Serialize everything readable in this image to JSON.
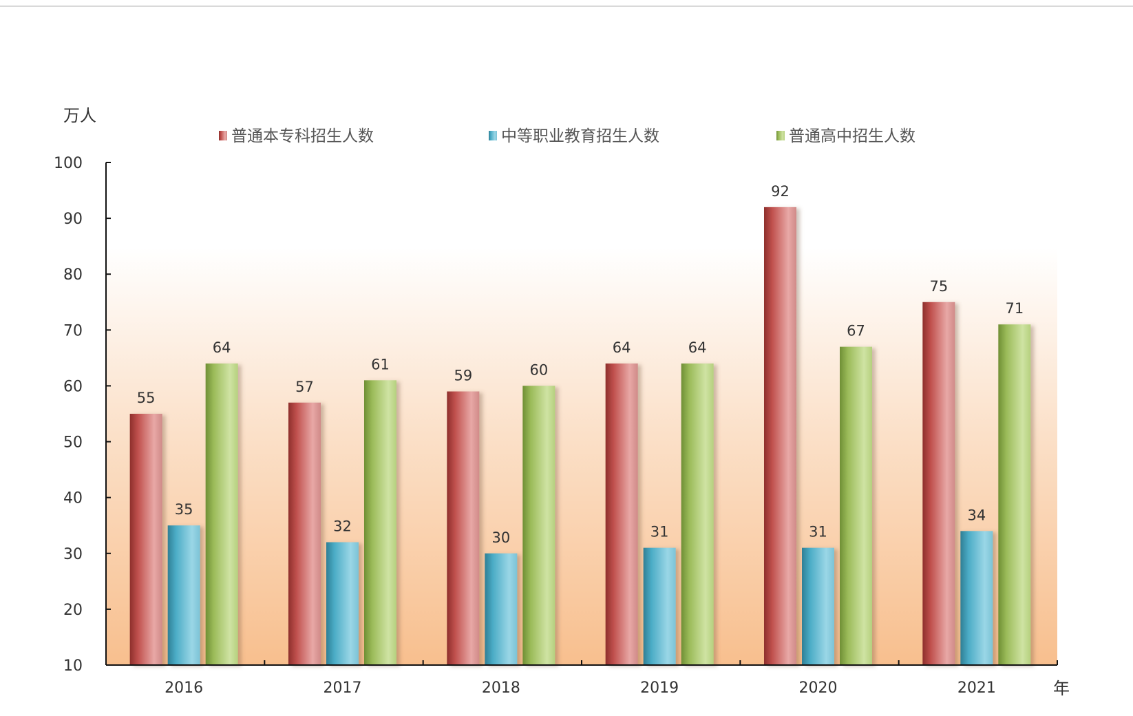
{
  "colors": {
    "series": [
      "#c0504d",
      "#4bacc6",
      "#9bbb59"
    ],
    "axis": "#111111",
    "background_gradient_top": "#ffffff",
    "background_gradient_bottom": "#f8bf8e"
  },
  "chart_data": {
    "type": "bar",
    "title": "",
    "xlabel": "年",
    "ylabel": "万人",
    "categories": [
      "2016",
      "2017",
      "2018",
      "2019",
      "2020",
      "2021"
    ],
    "series": [
      {
        "name": "普通本专科招生人数",
        "values": [
          55,
          57,
          59,
          64,
          92,
          75
        ]
      },
      {
        "name": "中等职业教育招生人数",
        "values": [
          35,
          32,
          30,
          31,
          31,
          34
        ]
      },
      {
        "name": "普通高中招生人数",
        "values": [
          64,
          61,
          60,
          64,
          67,
          71
        ]
      }
    ],
    "ylim": [
      10,
      100
    ],
    "yticks": [
      10,
      20,
      30,
      40,
      50,
      60,
      70,
      80,
      90,
      100
    ],
    "data_labels": [
      [
        "55",
        "57",
        "59",
        "64",
        "92",
        "75"
      ],
      [
        "35",
        "32",
        "30",
        "31",
        "31",
        "34"
      ],
      [
        "64",
        "61",
        "60",
        "64",
        "67",
        "71"
      ]
    ],
    "legend_position": "top",
    "grid": false
  }
}
